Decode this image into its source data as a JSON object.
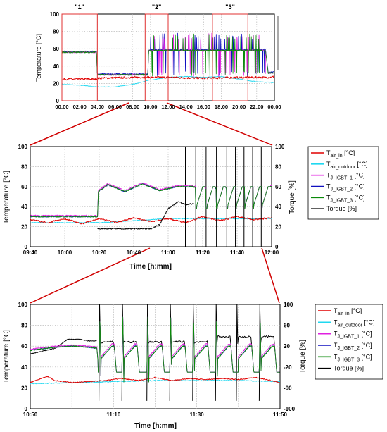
{
  "colors": {
    "air_in": "#e00000",
    "air_outdoor": "#20d8f0",
    "igbt1": "#e020e0",
    "igbt2": "#1010c0",
    "igbt3": "#0a8a0a",
    "torque": "#000000",
    "highlight": "#e03030",
    "zoom_line": "#d00000"
  },
  "chart_data": [
    {
      "type": "line",
      "id": "overview",
      "ylabel": "Temperature [°C]",
      "ylim": [
        0,
        100
      ],
      "yticks": [
        "0",
        "20",
        "40",
        "60",
        "80",
        "100"
      ],
      "xticks": [
        "00:00",
        "02:00",
        "04:00",
        "06:00",
        "08:00",
        "10:00",
        "12:00",
        "14:00",
        "16:00",
        "18:00",
        "20:00",
        "22:00",
        "00:00"
      ],
      "xlim_hours": [
        0,
        24
      ],
      "regions": [
        {
          "label": "\"1\"",
          "x_range_hours": [
            0,
            4
          ]
        },
        {
          "label": "\"2\"",
          "x_range_hours": [
            9.4,
            12
          ]
        },
        {
          "label": "\"3\"",
          "x_range_hours": [
            17,
            21
          ]
        }
      ],
      "series": [
        {
          "name": "T_air_in",
          "values": [
            [
              0,
              25
            ],
            [
              3.9,
              25
            ],
            [
              4,
              26
            ],
            [
              8,
              27
            ],
            [
              12,
              27
            ],
            [
              16,
              26
            ],
            [
              20,
              27
            ],
            [
              23.5,
              27
            ],
            [
              24,
              28
            ]
          ]
        },
        {
          "name": "T_air_outdoor",
          "values": [
            [
              0,
              19
            ],
            [
              2,
              18
            ],
            [
              4,
              16
            ],
            [
              6,
              16
            ],
            [
              8,
              19
            ],
            [
              10,
              24
            ],
            [
              12,
              27
            ],
            [
              14,
              28
            ],
            [
              16,
              27
            ],
            [
              18,
              28
            ],
            [
              20,
              25
            ],
            [
              22,
              22
            ],
            [
              24,
              21
            ]
          ]
        },
        {
          "name": "T_J_IGBT",
          "values": [
            [
              0,
              56
            ],
            [
              3.9,
              56
            ],
            [
              4,
              30
            ],
            [
              9.7,
              30
            ],
            [
              9.8,
              58
            ],
            [
              12,
              58
            ],
            [
              16,
              58
            ],
            [
              20,
              58
            ],
            [
              23,
              58
            ],
            [
              23.3,
              32
            ],
            [
              24,
              32
            ]
          ]
        }
      ]
    },
    {
      "type": "line",
      "id": "zoom1",
      "xlabel": "Time [h:mm]",
      "ylabel": "Temperature [°C]",
      "y2label": "Torque [%]",
      "ylim": [
        0,
        100
      ],
      "y2lim": [
        0,
        100
      ],
      "yticks": [
        "0",
        "20",
        "40",
        "60",
        "80",
        "100"
      ],
      "y2ticks": [
        "0",
        "20",
        "40",
        "60",
        "80",
        "100"
      ],
      "xticks": [
        "09:40",
        "10:00",
        "10:20",
        "10:40",
        "11:00",
        "11:20",
        "11:40",
        "12:00"
      ],
      "xlim_minutes": [
        580,
        720
      ],
      "legend": [
        {
          "key": "air_in",
          "main": "T",
          "sub": "air_in",
          "suffix": " [°C]"
        },
        {
          "key": "air_outdoor",
          "main": "T",
          "sub": "air_outdoor",
          "suffix": " [°C]"
        },
        {
          "key": "igbt1",
          "main": "T",
          "sub": "J_IGBT_1",
          "suffix": " [°C]"
        },
        {
          "key": "igbt2",
          "main": "T",
          "sub": "J_IGBT_2",
          "suffix": " [°C]"
        },
        {
          "key": "igbt3",
          "main": "T",
          "sub": "J_IGBT_3",
          "suffix": " [°C]"
        },
        {
          "key": "torque",
          "main": "Torque [%]",
          "sub": "",
          "suffix": ""
        }
      ],
      "series": [
        {
          "name": "T_air_in",
          "values": [
            [
              580,
              27
            ],
            [
              590,
              24
            ],
            [
              600,
              28
            ],
            [
              610,
              23
            ],
            [
              620,
              28
            ],
            [
              630,
              24
            ],
            [
              640,
              29
            ],
            [
              650,
              25
            ],
            [
              660,
              28
            ],
            [
              670,
              24
            ],
            [
              680,
              30
            ],
            [
              690,
              26
            ],
            [
              700,
              30
            ],
            [
              710,
              27
            ],
            [
              720,
              29
            ]
          ]
        },
        {
          "name": "T_air_outdoor",
          "values": [
            [
              580,
              24
            ],
            [
              620,
              24
            ],
            [
              640,
              26
            ],
            [
              660,
              28
            ],
            [
              680,
              28
            ],
            [
              700,
              28
            ],
            [
              720,
              28
            ]
          ]
        },
        {
          "name": "T_J_IGBT",
          "values": [
            [
              580,
              30
            ],
            [
              619,
              30
            ],
            [
              619.5,
              55
            ],
            [
              625,
              62
            ],
            [
              635,
              55
            ],
            [
              645,
              63
            ],
            [
              655,
              56
            ],
            [
              665,
              60
            ],
            [
              674,
              60
            ],
            [
              680,
              58
            ],
            [
              720,
              60
            ]
          ]
        },
        {
          "name": "Torque",
          "values": [
            [
              619,
              18
            ],
            [
              650,
              18
            ],
            [
              655,
              22
            ],
            [
              660,
              38
            ],
            [
              666,
              45
            ],
            [
              670,
              42
            ],
            [
              675,
              43
            ]
          ]
        }
      ]
    },
    {
      "type": "line",
      "id": "zoom2",
      "xlabel": "Time [h:mm]",
      "ylabel": "Temperature [°C]",
      "y2label": "Torque [%]",
      "ylim": [
        0,
        100
      ],
      "y2lim": [
        -100,
        100
      ],
      "yticks": [
        "0",
        "20",
        "40",
        "60",
        "80",
        "100"
      ],
      "y2ticks": [
        "-100",
        "-60",
        "-20",
        "20",
        "60",
        "100"
      ],
      "xticks": [
        "10:50",
        "11:10",
        "11:30",
        "11:50"
      ],
      "xlim_minutes": [
        650,
        710
      ],
      "legend": [
        {
          "key": "air_in",
          "main": "T",
          "sub": "air_in",
          "suffix": " [°C]"
        },
        {
          "key": "air_outdoor",
          "main": "T",
          "sub": "air_outdoor",
          "suffix": " [°C]"
        },
        {
          "key": "igbt1",
          "main": "T",
          "sub": "J_IGBT_1",
          "suffix": " [°C]"
        },
        {
          "key": "igbt2",
          "main": "T",
          "sub": "J_IGBT_2",
          "suffix": " [°C]"
        },
        {
          "key": "igbt3",
          "main": "T",
          "sub": "J_IGBT_3",
          "suffix": " [°C]"
        },
        {
          "key": "torque",
          "main": "Torque [%]",
          "sub": "",
          "suffix": ""
        }
      ],
      "series": [
        {
          "name": "T_air_in",
          "values": [
            [
              650,
              25
            ],
            [
              652,
              28
            ],
            [
              654,
              31
            ],
            [
              656,
              27
            ],
            [
              660,
              25
            ],
            [
              664,
              26
            ],
            [
              668,
              27
            ],
            [
              672,
              29
            ],
            [
              676,
              27
            ],
            [
              680,
              30
            ],
            [
              684,
              27
            ],
            [
              688,
              29
            ],
            [
              692,
              28
            ],
            [
              696,
              29
            ],
            [
              700,
              28
            ],
            [
              704,
              30
            ],
            [
              708,
              27
            ],
            [
              710,
              25
            ]
          ]
        },
        {
          "name": "T_air_outdoor",
          "values": [
            [
              650,
              24
            ],
            [
              660,
              25
            ],
            [
              670,
              26
            ],
            [
              680,
              27
            ],
            [
              690,
              27
            ],
            [
              700,
              27
            ],
            [
              710,
              26
            ]
          ]
        },
        {
          "name": "T_J_IGBT",
          "values": [
            [
              650,
              56
            ],
            [
              656,
              59
            ],
            [
              660,
              60
            ],
            [
              664,
              59
            ],
            [
              666,
              58
            ],
            [
              666.5,
              35
            ]
          ]
        },
        {
          "name": "Torque",
          "values": [
            [
              650,
              5
            ],
            [
              656,
              16
            ],
            [
              659,
              33
            ],
            [
              662,
              33
            ],
            [
              664,
              30
            ],
            [
              666,
              30
            ]
          ]
        }
      ]
    }
  ]
}
